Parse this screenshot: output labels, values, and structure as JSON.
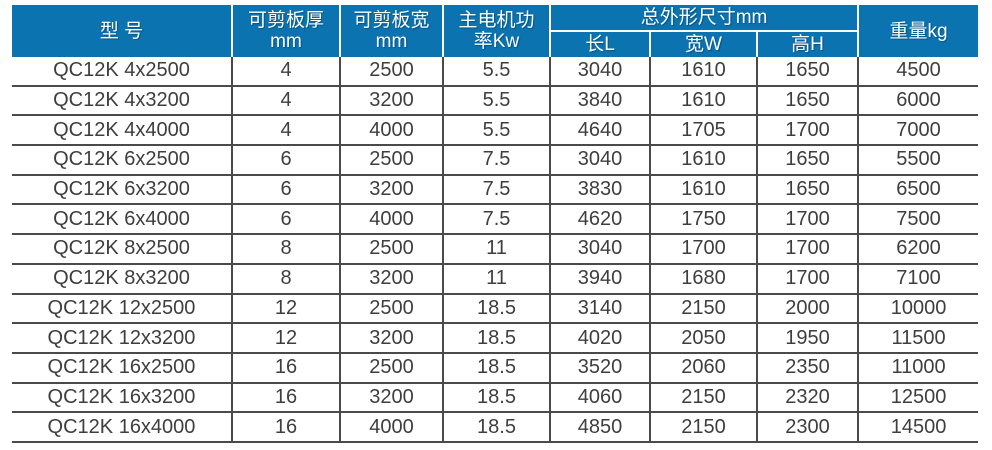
{
  "colors": {
    "header_bg": "#0a73b0",
    "header_text": "#ffffff",
    "body_text": "#3e3e3e",
    "grid_line": "#4a4a4a"
  },
  "table": {
    "header": {
      "model": "型 号",
      "thickness_line1": "可剪板厚",
      "thickness_line2": "mm",
      "width_line1": "可剪板宽",
      "width_line2": "mm",
      "power_line1": "主电机功",
      "power_line2": "率Kw",
      "dimensions_group": "总外形尺寸mm",
      "length": "长L",
      "width": "宽W",
      "height": "高H",
      "weight": "重量kg"
    },
    "rows": [
      [
        "QC12K 4x2500",
        "4",
        "2500",
        "5.5",
        "3040",
        "1610",
        "1650",
        "4500"
      ],
      [
        "QC12K 4x3200",
        "4",
        "3200",
        "5.5",
        "3840",
        "1610",
        "1650",
        "6000"
      ],
      [
        "QC12K 4x4000",
        "4",
        "4000",
        "5.5",
        "4640",
        "1705",
        "1700",
        "7000"
      ],
      [
        "QC12K 6x2500",
        "6",
        "2500",
        "7.5",
        "3040",
        "1610",
        "1650",
        "5500"
      ],
      [
        "QC12K 6x3200",
        "6",
        "3200",
        "7.5",
        "3830",
        "1610",
        "1650",
        "6500"
      ],
      [
        "QC12K 6x4000",
        "6",
        "4000",
        "7.5",
        "4620",
        "1750",
        "1700",
        "7500"
      ],
      [
        "QC12K 8x2500",
        "8",
        "2500",
        "11",
        "3040",
        "1700",
        "1700",
        "6200"
      ],
      [
        "QC12K 8x3200",
        "8",
        "3200",
        "11",
        "3940",
        "1680",
        "1700",
        "7100"
      ],
      [
        "QC12K 12x2500",
        "12",
        "2500",
        "18.5",
        "3140",
        "2150",
        "2000",
        "10000"
      ],
      [
        "QC12K 12x3200",
        "12",
        "3200",
        "18.5",
        "4020",
        "2050",
        "1950",
        "11500"
      ],
      [
        "QC12K 16x2500",
        "16",
        "2500",
        "18.5",
        "3520",
        "2060",
        "2350",
        "11000"
      ],
      [
        "QC12K 16x3200",
        "16",
        "3200",
        "18.5",
        "4060",
        "2150",
        "2320",
        "12500"
      ],
      [
        "QC12K 16x4000",
        "16",
        "4000",
        "18.5",
        "4850",
        "2150",
        "2300",
        "14500"
      ]
    ]
  }
}
